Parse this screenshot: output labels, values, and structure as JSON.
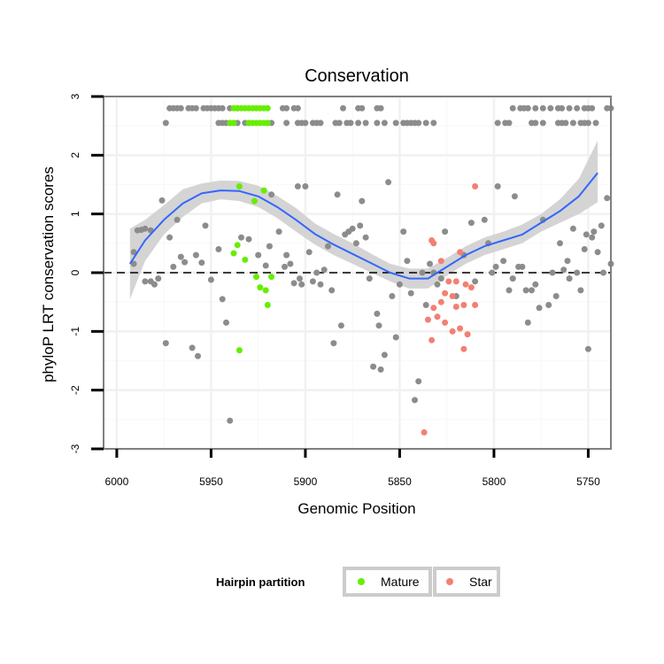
{
  "chart_data": {
    "type": "scatter",
    "title": "Conservation",
    "xlabel": "Genomic Position",
    "ylabel": "phyloP LRT conservation scores",
    "xlim": [
      6007,
      5738
    ],
    "ylim": [
      -3.0,
      3.0
    ],
    "x_reversed": true,
    "x_ticks": [
      6000,
      5950,
      5900,
      5850,
      5800,
      5750
    ],
    "x_tick_labels": [
      "6000",
      "5950",
      "5900",
      "5850",
      "5800",
      "5750"
    ],
    "y_ticks": [
      -3,
      -2,
      -1,
      0,
      1,
      2,
      3
    ],
    "y_tick_labels": [
      "-3",
      "-2",
      "-1",
      "0",
      "1",
      "2",
      "3"
    ],
    "reference_line": {
      "y": 0,
      "style": "dashed"
    },
    "grid": true,
    "legend": {
      "title": "Hairpin partition",
      "placement": "bottom",
      "entries": [
        {
          "name": "Mature",
          "color": "#66ee00"
        },
        {
          "name": "Star",
          "color": "#f28072"
        }
      ]
    },
    "colors": {
      "other": "#8c8c8c",
      "Mature": "#66ee00",
      "Star": "#f28072",
      "smooth": "#3366ff",
      "ribbon": "#d4d4d4"
    },
    "series": [
      {
        "name": "Other",
        "points": [
          [
            5991,
            0.15
          ],
          [
            5991,
            0.35
          ],
          [
            5989,
            0.72
          ],
          [
            5987,
            0.73
          ],
          [
            5985,
            0.75
          ],
          [
            5982,
            0.72
          ],
          [
            5985,
            -0.15
          ],
          [
            5982,
            -0.15
          ],
          [
            5980,
            -0.2
          ],
          [
            5978,
            -0.1
          ],
          [
            5976,
            1.23
          ],
          [
            5974,
            -1.2
          ],
          [
            5972,
            0.6
          ],
          [
            5970,
            0.1
          ],
          [
            5968,
            0.9
          ],
          [
            5966,
            0.27
          ],
          [
            5964,
            0.18
          ],
          [
            5960,
            -1.28
          ],
          [
            5958,
            0.3
          ],
          [
            5957,
            -1.42
          ],
          [
            5955,
            0.17
          ],
          [
            5953,
            0.8
          ],
          [
            5950,
            -0.12
          ],
          [
            5946,
            0.4
          ],
          [
            5944,
            -0.45
          ],
          [
            5942,
            -0.85
          ],
          [
            5940,
            -2.52
          ],
          [
            5934,
            0.6
          ],
          [
            5930,
            0.57
          ],
          [
            5925,
            0.3
          ],
          [
            5921,
            0.12
          ],
          [
            5919,
            0.45
          ],
          [
            5918,
            1.33
          ],
          [
            5914,
            0.7
          ],
          [
            5911,
            0.1
          ],
          [
            5910,
            0.3
          ],
          [
            5908,
            0.15
          ],
          [
            5906,
            -0.18
          ],
          [
            5904,
            1.47
          ],
          [
            5903,
            -0.1
          ],
          [
            5902,
            -0.2
          ],
          [
            5900,
            1.47
          ],
          [
            5898,
            0.35
          ],
          [
            5896,
            -0.15
          ],
          [
            5894,
            0.0
          ],
          [
            5892,
            -0.2
          ],
          [
            5890,
            0.05
          ],
          [
            5888,
            0.45
          ],
          [
            5886,
            -0.3
          ],
          [
            5885,
            -1.2
          ],
          [
            5883,
            1.33
          ],
          [
            5881,
            -0.9
          ],
          [
            5879,
            0.65
          ],
          [
            5877,
            0.7
          ],
          [
            5875,
            0.75
          ],
          [
            5873,
            0.5
          ],
          [
            5871,
            0.8
          ],
          [
            5870,
            1.22
          ],
          [
            5868,
            0.6
          ],
          [
            5866,
            -0.1
          ],
          [
            5864,
            -1.6
          ],
          [
            5862,
            -0.7
          ],
          [
            5861,
            -0.9
          ],
          [
            5860,
            -1.65
          ],
          [
            5858,
            -1.4
          ],
          [
            5856,
            1.54
          ],
          [
            5854,
            -0.4
          ],
          [
            5852,
            -1.1
          ],
          [
            5850,
            -0.2
          ],
          [
            5848,
            0.7
          ],
          [
            5846,
            0.2
          ],
          [
            5844,
            -0.35
          ],
          [
            5842,
            -2.17
          ],
          [
            5840,
            -1.85
          ],
          [
            5838,
            0.0
          ],
          [
            5836,
            -0.55
          ],
          [
            5834,
            0.15
          ],
          [
            5832,
            0.0
          ],
          [
            5830,
            -0.2
          ],
          [
            5828,
            -0.1
          ],
          [
            5826,
            0.7
          ],
          [
            5820,
            -0.4
          ],
          [
            5816,
            0.3
          ],
          [
            5812,
            0.85
          ],
          [
            5810,
            -0.15
          ],
          [
            5805,
            0.9
          ],
          [
            5803,
            0.5
          ],
          [
            5801,
            0.0
          ],
          [
            5799,
            0.1
          ],
          [
            5798,
            1.47
          ],
          [
            5795,
            0.2
          ],
          [
            5792,
            -0.3
          ],
          [
            5790,
            -0.1
          ],
          [
            5789,
            1.3
          ],
          [
            5787,
            0.1
          ],
          [
            5785,
            0.1
          ],
          [
            5783,
            -0.3
          ],
          [
            5782,
            -0.85
          ],
          [
            5780,
            -0.3
          ],
          [
            5778,
            -0.2
          ],
          [
            5776,
            -0.6
          ],
          [
            5774,
            0.9
          ],
          [
            5771,
            -0.55
          ],
          [
            5769,
            0.0
          ],
          [
            5767,
            -0.4
          ],
          [
            5765,
            0.5
          ],
          [
            5763,
            0.05
          ],
          [
            5761,
            0.2
          ],
          [
            5760,
            -0.1
          ],
          [
            5758,
            0.75
          ],
          [
            5756,
            0.0
          ],
          [
            5754,
            -0.3
          ],
          [
            5752,
            0.4
          ],
          [
            5751,
            0.65
          ],
          [
            5750,
            -1.3
          ],
          [
            5748,
            0.6
          ],
          [
            5747,
            0.7
          ],
          [
            5745,
            0.35
          ],
          [
            5743,
            0.8
          ],
          [
            5742,
            0.0
          ],
          [
            5740,
            1.27
          ],
          [
            5738,
            0.15
          ]
        ]
      },
      {
        "name": "Other (capped)",
        "points": [
          [
            5972,
            2.8
          ],
          [
            5970,
            2.8
          ],
          [
            5968,
            2.8
          ],
          [
            5966,
            2.8
          ],
          [
            5962,
            2.8
          ],
          [
            5960,
            2.8
          ],
          [
            5958,
            2.8
          ],
          [
            5954,
            2.8
          ],
          [
            5952,
            2.8
          ],
          [
            5950,
            2.8
          ],
          [
            5948,
            2.8
          ],
          [
            5946,
            2.8
          ],
          [
            5944,
            2.8
          ],
          [
            5940,
            2.8
          ],
          [
            5936,
            2.8
          ],
          [
            5912,
            2.8
          ],
          [
            5910,
            2.8
          ],
          [
            5906,
            2.8
          ],
          [
            5904,
            2.8
          ],
          [
            5880,
            2.8
          ],
          [
            5872,
            2.8
          ],
          [
            5870,
            2.8
          ],
          [
            5862,
            2.8
          ],
          [
            5860,
            2.8
          ],
          [
            5790,
            2.8
          ],
          [
            5786,
            2.8
          ],
          [
            5784,
            2.8
          ],
          [
            5782,
            2.8
          ],
          [
            5778,
            2.8
          ],
          [
            5774,
            2.8
          ],
          [
            5770,
            2.8
          ],
          [
            5766,
            2.8
          ],
          [
            5764,
            2.8
          ],
          [
            5760,
            2.8
          ],
          [
            5756,
            2.8
          ],
          [
            5752,
            2.8
          ],
          [
            5750,
            2.8
          ],
          [
            5748,
            2.8
          ],
          [
            5740,
            2.8
          ],
          [
            5738,
            2.8
          ],
          [
            5974,
            2.55
          ],
          [
            5946,
            2.55
          ],
          [
            5944,
            2.55
          ],
          [
            5942,
            2.55
          ],
          [
            5940,
            2.55
          ],
          [
            5938,
            2.55
          ],
          [
            5936,
            2.55
          ],
          [
            5932,
            2.55
          ],
          [
            5930,
            2.55
          ],
          [
            5920,
            2.55
          ],
          [
            5918,
            2.55
          ],
          [
            5910,
            2.55
          ],
          [
            5904,
            2.55
          ],
          [
            5902,
            2.55
          ],
          [
            5900,
            2.55
          ],
          [
            5896,
            2.55
          ],
          [
            5894,
            2.55
          ],
          [
            5892,
            2.55
          ],
          [
            5884,
            2.55
          ],
          [
            5882,
            2.55
          ],
          [
            5878,
            2.55
          ],
          [
            5876,
            2.55
          ],
          [
            5872,
            2.55
          ],
          [
            5868,
            2.55
          ],
          [
            5862,
            2.55
          ],
          [
            5858,
            2.55
          ],
          [
            5852,
            2.55
          ],
          [
            5848,
            2.55
          ],
          [
            5846,
            2.55
          ],
          [
            5844,
            2.55
          ],
          [
            5842,
            2.55
          ],
          [
            5840,
            2.55
          ],
          [
            5836,
            2.55
          ],
          [
            5832,
            2.55
          ],
          [
            5798,
            2.55
          ],
          [
            5794,
            2.55
          ],
          [
            5792,
            2.55
          ],
          [
            5780,
            2.55
          ],
          [
            5778,
            2.55
          ],
          [
            5774,
            2.55
          ],
          [
            5766,
            2.55
          ],
          [
            5764,
            2.55
          ],
          [
            5762,
            2.55
          ],
          [
            5758,
            2.55
          ],
          [
            5754,
            2.55
          ],
          [
            5752,
            2.55
          ],
          [
            5750,
            2.55
          ],
          [
            5746,
            2.55
          ]
        ]
      },
      {
        "name": "Mature",
        "points": [
          [
            5938,
            2.8
          ],
          [
            5936,
            2.8
          ],
          [
            5934,
            2.8
          ],
          [
            5932,
            2.8
          ],
          [
            5930,
            2.8
          ],
          [
            5928,
            2.8
          ],
          [
            5926,
            2.8
          ],
          [
            5924,
            2.8
          ],
          [
            5922,
            2.8
          ],
          [
            5920,
            2.8
          ],
          [
            5940,
            2.55
          ],
          [
            5938,
            2.55
          ],
          [
            5930,
            2.55
          ],
          [
            5928,
            2.55
          ],
          [
            5926,
            2.55
          ],
          [
            5924,
            2.55
          ],
          [
            5922,
            2.55
          ],
          [
            5920,
            2.55
          ],
          [
            5935,
            1.47
          ],
          [
            5927,
            1.22
          ],
          [
            5922,
            1.4
          ],
          [
            5936,
            0.47
          ],
          [
            5938,
            0.33
          ],
          [
            5932,
            0.22
          ],
          [
            5926,
            -0.07
          ],
          [
            5924,
            -0.25
          ],
          [
            5921,
            -0.3
          ],
          [
            5918,
            -0.07
          ],
          [
            5920,
            -0.55
          ],
          [
            5935,
            -1.32
          ]
        ]
      },
      {
        "name": "Star",
        "points": [
          [
            5833,
            0.55
          ],
          [
            5832,
            0.5
          ],
          [
            5828,
            0.2
          ],
          [
            5818,
            0.35
          ],
          [
            5810,
            1.47
          ],
          [
            5824,
            -0.15
          ],
          [
            5820,
            -0.15
          ],
          [
            5815,
            -0.2
          ],
          [
            5812,
            -0.25
          ],
          [
            5826,
            -0.35
          ],
          [
            5828,
            -0.5
          ],
          [
            5832,
            -0.6
          ],
          [
            5822,
            -0.4
          ],
          [
            5816,
            -0.55
          ],
          [
            5810,
            -0.55
          ],
          [
            5820,
            -0.58
          ],
          [
            5835,
            -0.8
          ],
          [
            5830,
            -0.75
          ],
          [
            5826,
            -0.85
          ],
          [
            5822,
            -1.0
          ],
          [
            5818,
            -0.95
          ],
          [
            5833,
            -1.15
          ],
          [
            5814,
            -1.05
          ],
          [
            5816,
            -1.3
          ],
          [
            5837,
            -2.72
          ]
        ]
      }
    ],
    "smooth_line": {
      "x": [
        5993,
        5985,
        5975,
        5965,
        5955,
        5945,
        5935,
        5925,
        5915,
        5905,
        5895,
        5885,
        5875,
        5865,
        5855,
        5845,
        5835,
        5825,
        5815,
        5805,
        5795,
        5785,
        5775,
        5765,
        5755,
        5745
      ],
      "y": [
        0.15,
        0.55,
        0.9,
        1.18,
        1.35,
        1.4,
        1.39,
        1.3,
        1.12,
        0.9,
        0.66,
        0.48,
        0.32,
        0.16,
        0.0,
        -0.1,
        -0.1,
        0.1,
        0.3,
        0.45,
        0.55,
        0.65,
        0.85,
        1.05,
        1.3,
        1.7
      ],
      "lower": [
        -0.45,
        0.2,
        0.65,
        0.95,
        1.18,
        1.25,
        1.22,
        1.12,
        0.93,
        0.7,
        0.48,
        0.3,
        0.15,
        0.0,
        -0.15,
        -0.27,
        -0.27,
        -0.05,
        0.15,
        0.3,
        0.4,
        0.5,
        0.7,
        0.85,
        1.0,
        1.2
      ],
      "upper": [
        0.75,
        0.9,
        1.15,
        1.42,
        1.52,
        1.57,
        1.56,
        1.48,
        1.31,
        1.1,
        0.84,
        0.66,
        0.5,
        0.32,
        0.15,
        0.07,
        0.07,
        0.25,
        0.45,
        0.6,
        0.7,
        0.82,
        1.0,
        1.25,
        1.6,
        2.25
      ]
    }
  }
}
